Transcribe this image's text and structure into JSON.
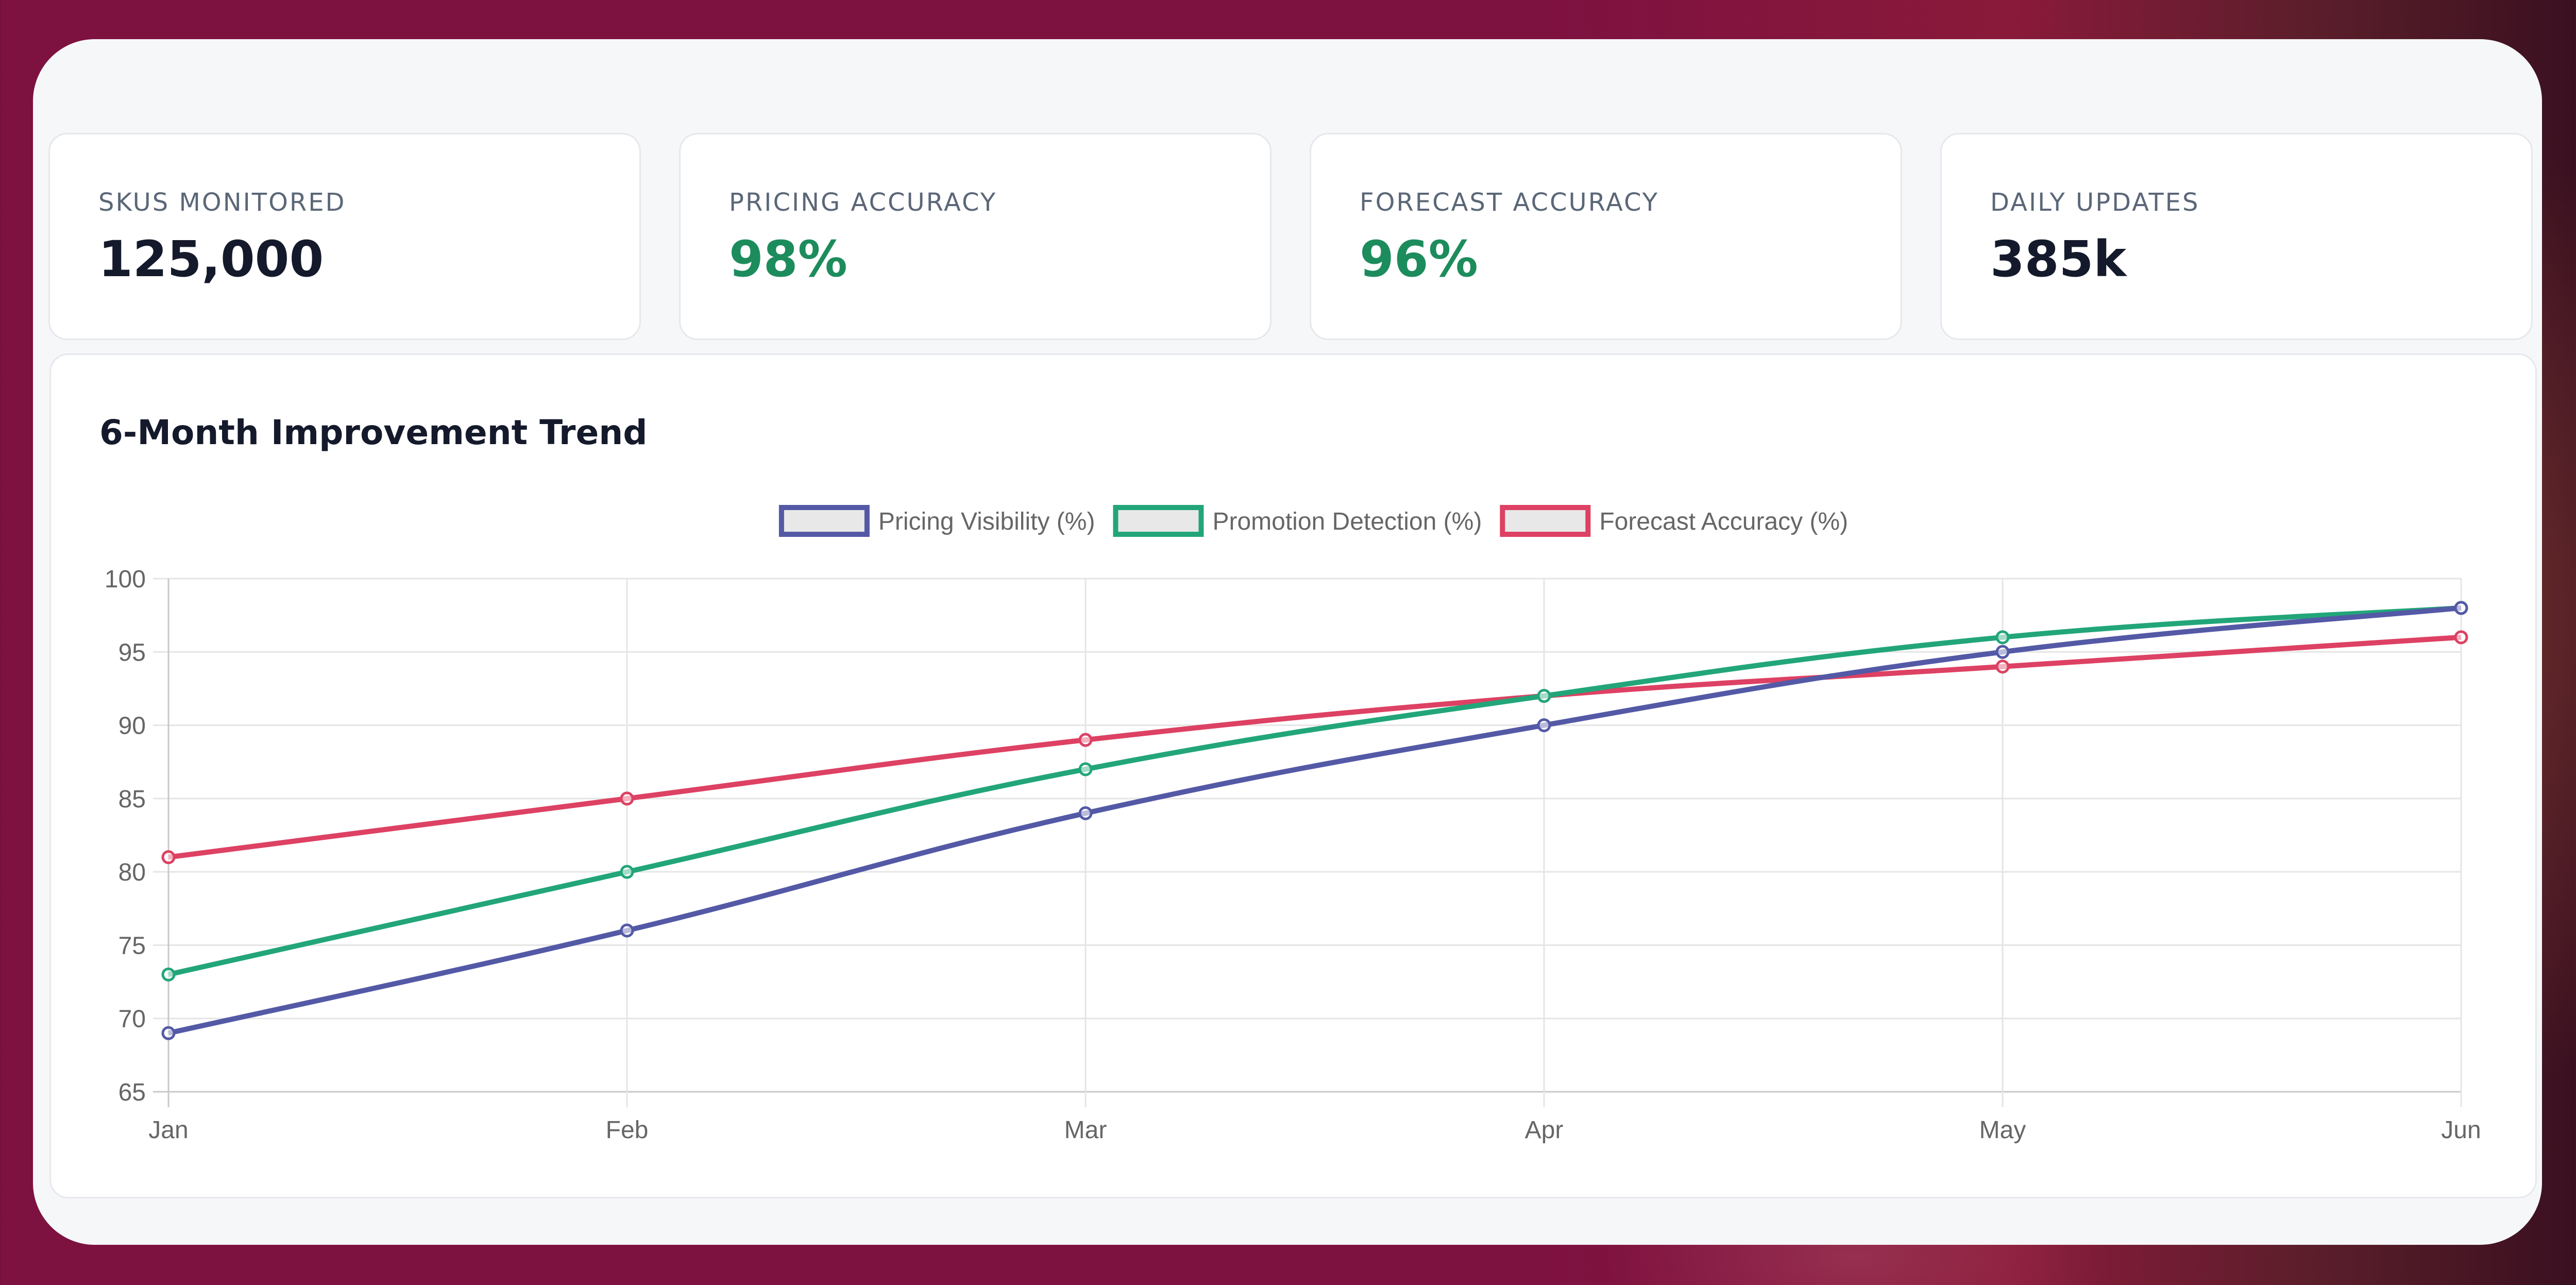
{
  "kpis": [
    {
      "label": "SKUS MONITORED",
      "value": "125,000",
      "accent": "#141a2b"
    },
    {
      "label": "PRICING ACCURACY",
      "value": "98%",
      "accent": "#1d8c5d"
    },
    {
      "label": "FORECAST ACCURACY",
      "value": "96%",
      "accent": "#1d8c5d"
    },
    {
      "label": "DAILY UPDATES",
      "value": "385k",
      "accent": "#141a2b"
    }
  ],
  "chart": {
    "title": "6-Month Improvement Trend"
  },
  "chart_data": {
    "type": "line",
    "categories": [
      "Jan",
      "Feb",
      "Mar",
      "Apr",
      "May",
      "Jun"
    ],
    "ylim": [
      65,
      100
    ],
    "yticks": [
      "100",
      "95",
      "90",
      "85",
      "80",
      "75",
      "70",
      "65"
    ],
    "grid": true,
    "legend": "top-center",
    "series": [
      {
        "name": "Pricing Visibility (%)",
        "color": "#5459a6",
        "values": [
          69,
          76,
          84,
          90,
          95,
          98
        ]
      },
      {
        "name": "Promotion Detection (%)",
        "color": "#22a679",
        "values": [
          73,
          80,
          87,
          92,
          96,
          98
        ]
      },
      {
        "name": "Forecast Accuracy (%)",
        "color": "#dd4163",
        "values": [
          81,
          85,
          89,
          92,
          94,
          96
        ]
      }
    ]
  }
}
